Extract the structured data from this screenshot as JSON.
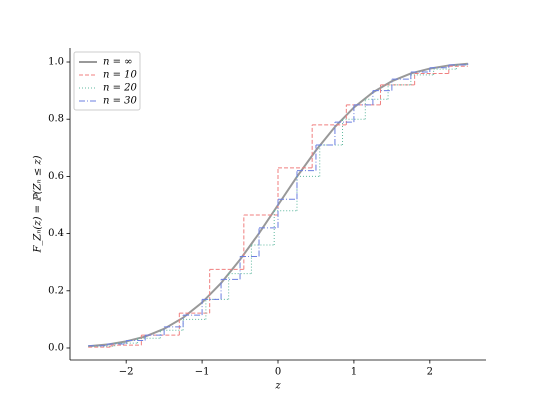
{
  "chart_data": {
    "type": "line",
    "xlabel": "z",
    "ylabel": "F_Zₙ(z) = ℙ(Zₙ ≤ z)",
    "xlim": [
      -2.74,
      2.74
    ],
    "ylim": [
      -0.042,
      1.049
    ],
    "xticks": [
      {
        "value": -2,
        "label": "−2"
      },
      {
        "value": -1,
        "label": "−1"
      },
      0,
      1,
      2
    ],
    "yticks": [
      {
        "value": 0,
        "label": "0.0"
      },
      {
        "value": 0.2,
        "label": "0.2"
      },
      {
        "value": 0.4,
        "label": "0.4"
      },
      {
        "value": 0.6,
        "label": "0.6"
      },
      {
        "value": 0.8,
        "label": "0.8"
      },
      {
        "value": 1,
        "label": "1.0"
      }
    ],
    "legend": "upper left",
    "series": [
      {
        "name": "n = ∞",
        "color": "#999999",
        "dash": "solid",
        "drawstyle": "default",
        "x": [
          -2.5,
          -2.25,
          -2,
          -1.75,
          -1.5,
          -1.25,
          -1,
          -0.75,
          -0.5,
          -0.25,
          0,
          0.25,
          0.5,
          0.75,
          1,
          1.25,
          1.5,
          1.75,
          2,
          2.25,
          2.5
        ],
        "values": [
          0.006,
          0.012,
          0.023,
          0.04,
          0.067,
          0.106,
          0.159,
          0.227,
          0.309,
          0.401,
          0.5,
          0.599,
          0.691,
          0.773,
          0.841,
          0.894,
          0.933,
          0.96,
          0.977,
          0.988,
          0.994
        ]
      },
      {
        "name": "n = 10",
        "color": "#f07f7f",
        "dash": "dashed",
        "drawstyle": "steps-post",
        "x": [
          -2.5,
          -2.2,
          -1.8,
          -1.3,
          -0.9,
          -0.45,
          0,
          0.45,
          0.9,
          1.35,
          1.8,
          2.25,
          2.5
        ],
        "values": [
          0.003,
          0.01,
          0.045,
          0.122,
          0.275,
          0.465,
          0.63,
          0.78,
          0.85,
          0.92,
          0.96,
          0.985,
          0.985
        ]
      },
      {
        "name": "n = 20",
        "color": "#5fb89f",
        "dash": "dotted",
        "drawstyle": "steps-post",
        "x": [
          -2.5,
          -2.15,
          -1.85,
          -1.55,
          -1.25,
          -0.95,
          -0.65,
          -0.35,
          -0.05,
          0.25,
          0.55,
          0.85,
          1.15,
          1.45,
          1.75,
          2.05,
          2.35,
          2.5
        ],
        "values": [
          0.006,
          0.017,
          0.034,
          0.062,
          0.1,
          0.17,
          0.26,
          0.36,
          0.48,
          0.6,
          0.71,
          0.8,
          0.87,
          0.92,
          0.955,
          0.975,
          0.99,
          0.99
        ]
      },
      {
        "name": "n = 30",
        "color": "#6b7fe0",
        "dash": "dashdot",
        "drawstyle": "steps-post",
        "x": [
          -2.5,
          -2.25,
          -2,
          -1.75,
          -1.5,
          -1.25,
          -1,
          -0.75,
          -0.5,
          -0.25,
          0,
          0.25,
          0.5,
          0.75,
          1,
          1.25,
          1.5,
          1.75,
          2,
          2.25,
          2.5
        ],
        "values": [
          0.008,
          0.014,
          0.026,
          0.045,
          0.074,
          0.115,
          0.17,
          0.24,
          0.32,
          0.42,
          0.52,
          0.62,
          0.71,
          0.79,
          0.85,
          0.9,
          0.94,
          0.965,
          0.98,
          0.99,
          0.995
        ]
      }
    ]
  }
}
